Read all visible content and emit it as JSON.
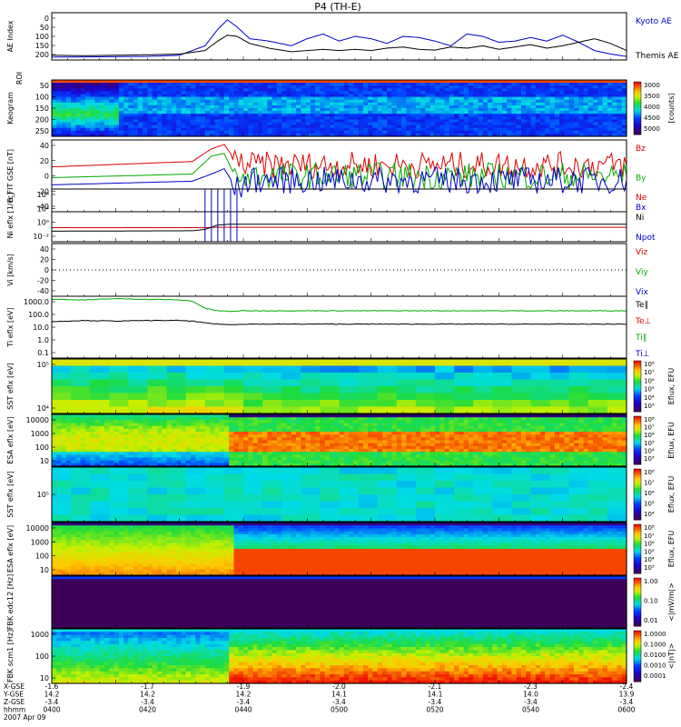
{
  "title": "P4 (TH-E)",
  "footer": {
    "row_labels": [
      "X-GSE",
      "Y-GSE",
      "Z-GSE",
      "hhmm",
      "2007 Apr 09"
    ],
    "columns": [
      [
        "-1.6",
        "14.2",
        "-3.4",
        "0400"
      ],
      [
        "-1.7",
        "14.2",
        "-3.4",
        "0420"
      ],
      [
        "-1.9",
        "14.2",
        "-3.4",
        "0440"
      ],
      [
        "-2.0",
        "14.1",
        "-3.4",
        "0500"
      ],
      [
        "-2.1",
        "14.1",
        "-3.4",
        "0520"
      ],
      [
        "-2.3",
        "14.0",
        "-3.4",
        "0540"
      ],
      [
        "-2.4",
        "13.9",
        "-3.4",
        "0600"
      ]
    ]
  },
  "chart_data": [
    {
      "id": "ae",
      "type": "line",
      "ylabel": "AE Index",
      "yticks": [
        "0",
        "50",
        "100",
        "150",
        "200"
      ],
      "ylim": [
        0,
        200
      ],
      "legend": [
        {
          "text": "Kyoto AE",
          "color": "#0000cc"
        },
        {
          "text": "Themis AE",
          "color": "#000000"
        }
      ],
      "x_minutes": [
        0,
        10,
        20,
        30,
        40,
        48,
        52,
        55,
        58,
        62,
        68,
        75,
        80,
        85,
        90,
        95,
        100,
        105,
        110,
        115,
        120,
        125,
        130,
        135,
        140,
        145,
        150,
        155,
        160,
        165,
        170,
        175,
        180
      ],
      "series": [
        {
          "name": "Kyoto AE",
          "color": "#0000cc",
          "values": [
            12,
            13,
            14,
            15,
            20,
            60,
            130,
            170,
            140,
            90,
            80,
            60,
            90,
            110,
            80,
            100,
            90,
            70,
            100,
            95,
            80,
            60,
            110,
            100,
            75,
            80,
            95,
            80,
            105,
            75,
            40,
            25,
            15
          ]
        },
        {
          "name": "Themis AE",
          "color": "#000000",
          "values": [
            20,
            18,
            20,
            22,
            25,
            40,
            80,
            105,
            100,
            70,
            50,
            35,
            40,
            45,
            40,
            45,
            40,
            50,
            55,
            45,
            42,
            55,
            50,
            60,
            45,
            55,
            65,
            50,
            60,
            75,
            90,
            70,
            40
          ]
        }
      ]
    },
    {
      "id": "keogram",
      "type": "heatmap",
      "ylabel": "Keogram",
      "ylabel2": "ROI",
      "yticks": [
        "50",
        "100",
        "150",
        "200",
        "250"
      ],
      "colorbar": {
        "label": "[counts]",
        "ticks": [
          "3000",
          "3500",
          "4000",
          "4500",
          "5000"
        ]
      }
    },
    {
      "id": "bfield",
      "type": "line",
      "ylabel": "B_FIT GSE [nT]",
      "yticks": [
        "40",
        "20",
        "0",
        "-20",
        "-40"
      ],
      "ylim": [
        -40,
        40
      ],
      "legend": [
        {
          "text": "Bz",
          "color": "#dd0000"
        },
        {
          "text": "By",
          "color": "#00aa00"
        },
        {
          "text": "Bx",
          "color": "#0000cc"
        }
      ],
      "x_minutes": [
        0,
        44,
        50,
        54,
        58,
        62,
        180
      ],
      "series": [
        {
          "name": "Bz",
          "color": "#dd0000",
          "values": [
            10,
            16,
            30,
            35,
            15,
            12,
            12
          ]
        },
        {
          "name": "By",
          "color": "#00aa00",
          "values": [
            -2,
            2,
            22,
            25,
            -5,
            0,
            0
          ]
        },
        {
          "name": "Bx",
          "color": "#0000cc",
          "values": [
            -10,
            -6,
            2,
            8,
            -15,
            -5,
            -5
          ]
        }
      ]
    },
    {
      "id": "density",
      "type": "line",
      "ylabel": "Ni eflx [1/cc]",
      "yticks": [
        "10⁸",
        "10⁴",
        "10⁰",
        "10⁻²"
      ],
      "ylim_log10": [
        -3,
        9
      ],
      "legend": [
        {
          "text": "Ne",
          "color": "#dd0000"
        },
        {
          "text": "Ni",
          "color": "#000000"
        },
        {
          "text": "Npot",
          "color": "#0000cc"
        }
      ],
      "x_minutes": [
        0,
        44,
        48,
        52,
        56,
        180
      ],
      "series": [
        {
          "name": "Ne",
          "color": "#dd0000",
          "values_log10": [
            0.2,
            0.2,
            0.2,
            0.3,
            0.3,
            0.3
          ]
        },
        {
          "name": "Ni",
          "color": "#000000",
          "values_log10": [
            -0.6,
            -0.5,
            -0.2,
            0.8,
            1.0,
            1.0
          ]
        }
      ]
    },
    {
      "id": "velocity",
      "type": "line",
      "ylabel": "Vi [km/s]",
      "yticks": [
        "40",
        "20",
        "0",
        "-20",
        "-40"
      ],
      "ylim": [
        -50,
        50
      ],
      "legend": [
        {
          "text": "Viz",
          "color": "#dd0000"
        },
        {
          "text": "Viy",
          "color": "#00aa00"
        },
        {
          "text": "Vix",
          "color": "#0000cc"
        }
      ]
    },
    {
      "id": "temp",
      "type": "line",
      "ylabel": "Ti eflx [eV]",
      "yticks": [
        "1000.0",
        "100.0",
        "10.0",
        "1.0",
        "0.1"
      ],
      "ylim_log10": [
        -1.3,
        3.8
      ],
      "legend": [
        {
          "text": "Te∥",
          "color": "#000000"
        },
        {
          "text": "Te⊥",
          "color": "#dd0000"
        },
        {
          "text": "Ti∥",
          "color": "#00aa00"
        },
        {
          "text": "Ti⊥",
          "color": "#0000cc"
        }
      ],
      "x_minutes": [
        0,
        10,
        20,
        30,
        40,
        44,
        48,
        52,
        56,
        60,
        180
      ],
      "series": [
        {
          "name": "Ti∥",
          "color": "#00aa00",
          "values_log10": [
            3.55,
            3.5,
            3.6,
            3.55,
            3.5,
            3.4,
            2.8,
            2.6,
            2.55,
            2.6,
            2.6
          ]
        },
        {
          "name": "Te∥",
          "color": "#000000",
          "values_log10": [
            1.7,
            1.8,
            1.75,
            1.8,
            1.8,
            1.75,
            1.6,
            1.5,
            1.45,
            1.5,
            1.5
          ]
        }
      ]
    },
    {
      "id": "sst_e",
      "type": "heatmap",
      "ylabel": "SST eflx [eV]",
      "yticks": [
        "10⁵",
        "10⁴"
      ],
      "colorbar": {
        "label": "Eflux, EFU",
        "ticks": [
          "10⁸",
          "10⁷",
          "10⁶",
          "10⁵",
          "10⁴",
          "10³"
        ]
      }
    },
    {
      "id": "esa_e",
      "type": "heatmap",
      "ylabel": "ESA eflx [eV]",
      "yticks": [
        "10000",
        "1000",
        "100",
        "10"
      ],
      "colorbar": {
        "label": "Eflux, EFU",
        "ticks": [
          "10⁸",
          "10⁷",
          "10⁶",
          "10⁵",
          "10⁴",
          "10³"
        ]
      }
    },
    {
      "id": "sst_i",
      "type": "heatmap",
      "ylabel": "SST eflx [eV]",
      "yticks": [
        "10⁵"
      ],
      "colorbar": {
        "label": "Eflux, EFU",
        "ticks": [
          "10⁸",
          "10⁷",
          "10⁶",
          "10⁵",
          "10⁴"
        ]
      }
    },
    {
      "id": "esa_i",
      "type": "heatmap",
      "ylabel": "ESA eflx [eV]",
      "yticks": [
        "10000",
        "1000",
        "100",
        "10"
      ],
      "colorbar": {
        "label": "Eflux, EFU",
        "ticks": [
          "10⁸",
          "10⁷",
          "10⁶",
          "10⁵",
          "10⁴",
          "10³"
        ]
      }
    },
    {
      "id": "fbk_edc",
      "type": "heatmap",
      "ylabel": "FBK edc12 [Hz]",
      "yticks": [],
      "colorbar": {
        "label": "<|mV/m|>",
        "ticks": [
          "1.00",
          "0.10",
          "0.01"
        ]
      }
    },
    {
      "id": "fbk_scm",
      "type": "heatmap",
      "ylabel": "FBK scm1 [Hz]",
      "yticks": [
        "1000",
        "100",
        "10"
      ],
      "colorbar": {
        "label": "<|nT|>",
        "ticks": [
          "1.0000",
          "0.1000",
          "0.0100",
          "0.0010",
          "0.0001"
        ]
      }
    }
  ]
}
